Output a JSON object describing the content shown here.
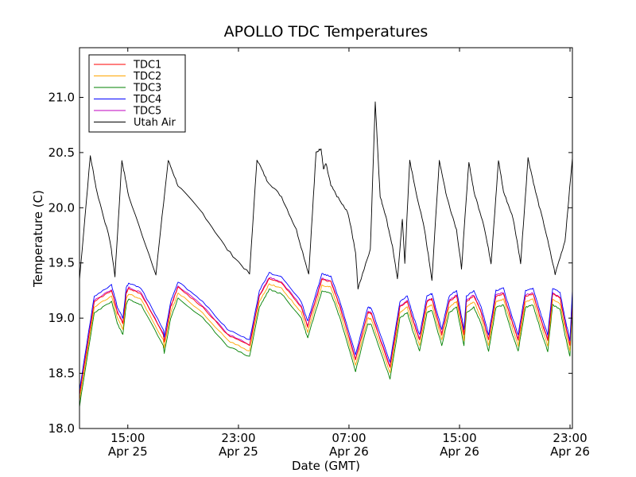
{
  "chart_data": {
    "type": "line",
    "title": "APOLLO TDC Temperatures",
    "xlabel": "Date (GMT)",
    "ylabel": "Temperature (C)",
    "xlim": [
      0,
      1.0
    ],
    "ylim": [
      18.0,
      21.45
    ],
    "grid": false,
    "legend_position": "top-left",
    "y_ticks": [
      {
        "value": 18.0,
        "label": "18.0"
      },
      {
        "value": 18.5,
        "label": "18.5"
      },
      {
        "value": 19.0,
        "label": "19.0"
      },
      {
        "value": 19.5,
        "label": "19.5"
      },
      {
        "value": 20.0,
        "label": "20.0"
      },
      {
        "value": 20.5,
        "label": "20.5"
      },
      {
        "value": 21.0,
        "label": "21.0"
      }
    ],
    "x_ticks": [
      {
        "pos": 0.098,
        "time": "15:00",
        "date": "Apr 25"
      },
      {
        "pos": 0.3225,
        "time": "23:00",
        "date": "Apr 25"
      },
      {
        "pos": 0.5467,
        "time": "07:00",
        "date": "Apr 26"
      },
      {
        "pos": 0.771,
        "time": "15:00",
        "date": "Apr 26"
      },
      {
        "pos": 0.9952,
        "time": "23:00",
        "date": "Apr 26"
      }
    ],
    "series": [
      {
        "name": "TDC1",
        "color": "#ff0000",
        "offset": 0.0
      },
      {
        "name": "TDC2",
        "color": "#ffa500",
        "offset": -0.05
      },
      {
        "name": "TDC3",
        "color": "#008000",
        "offset": -0.1
      },
      {
        "name": "TDC4",
        "color": "#0000ff",
        "offset": 0.05
      },
      {
        "name": "TDC5",
        "color": "#bf00bf",
        "offset": 0.01
      },
      {
        "name": "Utah Air",
        "color": "#000000",
        "offset": 0
      }
    ],
    "tdc_base_points": [
      [
        0.0,
        18.3
      ],
      [
        0.03,
        19.15
      ],
      [
        0.065,
        19.25
      ],
      [
        0.077,
        19.05
      ],
      [
        0.088,
        18.95
      ],
      [
        0.095,
        19.23
      ],
      [
        0.1,
        19.27
      ],
      [
        0.125,
        19.22
      ],
      [
        0.17,
        18.85
      ],
      [
        0.172,
        18.78
      ],
      [
        0.185,
        19.1
      ],
      [
        0.2,
        19.28
      ],
      [
        0.25,
        19.1
      ],
      [
        0.3,
        18.85
      ],
      [
        0.345,
        18.75
      ],
      [
        0.365,
        19.2
      ],
      [
        0.385,
        19.36
      ],
      [
        0.41,
        19.32
      ],
      [
        0.45,
        19.1
      ],
      [
        0.463,
        18.92
      ],
      [
        0.468,
        19.0
      ],
      [
        0.492,
        19.35
      ],
      [
        0.51,
        19.33
      ],
      [
        0.53,
        19.08
      ],
      [
        0.56,
        18.62
      ],
      [
        0.585,
        19.05
      ],
      [
        0.592,
        19.04
      ],
      [
        0.63,
        18.55
      ],
      [
        0.65,
        19.1
      ],
      [
        0.665,
        19.15
      ],
      [
        0.675,
        19.0
      ],
      [
        0.69,
        18.8
      ],
      [
        0.705,
        19.15
      ],
      [
        0.715,
        19.17
      ],
      [
        0.735,
        18.85
      ],
      [
        0.75,
        19.15
      ],
      [
        0.765,
        19.2
      ],
      [
        0.78,
        18.85
      ],
      [
        0.785,
        19.15
      ],
      [
        0.8,
        19.2
      ],
      [
        0.815,
        19.05
      ],
      [
        0.83,
        18.8
      ],
      [
        0.845,
        19.2
      ],
      [
        0.86,
        19.22
      ],
      [
        0.875,
        19.0
      ],
      [
        0.89,
        18.8
      ],
      [
        0.905,
        19.2
      ],
      [
        0.92,
        19.22
      ],
      [
        0.935,
        19.0
      ],
      [
        0.95,
        18.8
      ],
      [
        0.96,
        19.22
      ],
      [
        0.975,
        19.18
      ],
      [
        0.985,
        18.95
      ],
      [
        0.995,
        18.75
      ],
      [
        1.0,
        19.2
      ]
    ],
    "air_points": [
      [
        0.0,
        19.35
      ],
      [
        0.022,
        20.47
      ],
      [
        0.035,
        20.15
      ],
      [
        0.062,
        19.7
      ],
      [
        0.072,
        19.38
      ],
      [
        0.086,
        20.43
      ],
      [
        0.1,
        20.1
      ],
      [
        0.155,
        19.4
      ],
      [
        0.18,
        20.43
      ],
      [
        0.2,
        20.2
      ],
      [
        0.25,
        19.95
      ],
      [
        0.3,
        19.62
      ],
      [
        0.345,
        19.4
      ],
      [
        0.36,
        20.44
      ],
      [
        0.38,
        20.25
      ],
      [
        0.41,
        20.1
      ],
      [
        0.44,
        19.8
      ],
      [
        0.465,
        19.4
      ],
      [
        0.48,
        20.5
      ],
      [
        0.49,
        20.54
      ],
      [
        0.495,
        20.35
      ],
      [
        0.5,
        20.4
      ],
      [
        0.51,
        20.2
      ],
      [
        0.53,
        20.05
      ],
      [
        0.545,
        19.95
      ],
      [
        0.56,
        19.6
      ],
      [
        0.565,
        19.27
      ],
      [
        0.59,
        19.62
      ],
      [
        0.6,
        20.96
      ],
      [
        0.61,
        20.1
      ],
      [
        0.62,
        19.95
      ],
      [
        0.635,
        19.65
      ],
      [
        0.645,
        19.35
      ],
      [
        0.655,
        19.9
      ],
      [
        0.66,
        19.5
      ],
      [
        0.67,
        20.43
      ],
      [
        0.68,
        20.2
      ],
      [
        0.7,
        19.8
      ],
      [
        0.715,
        19.35
      ],
      [
        0.73,
        20.43
      ],
      [
        0.745,
        20.1
      ],
      [
        0.765,
        19.8
      ],
      [
        0.775,
        19.45
      ],
      [
        0.79,
        20.42
      ],
      [
        0.8,
        20.15
      ],
      [
        0.82,
        19.85
      ],
      [
        0.835,
        19.5
      ],
      [
        0.85,
        20.43
      ],
      [
        0.86,
        20.15
      ],
      [
        0.88,
        19.9
      ],
      [
        0.895,
        19.5
      ],
      [
        0.91,
        20.45
      ],
      [
        0.925,
        20.15
      ],
      [
        0.945,
        19.8
      ],
      [
        0.965,
        19.4
      ],
      [
        0.985,
        19.7
      ],
      [
        1.0,
        20.45
      ]
    ]
  }
}
